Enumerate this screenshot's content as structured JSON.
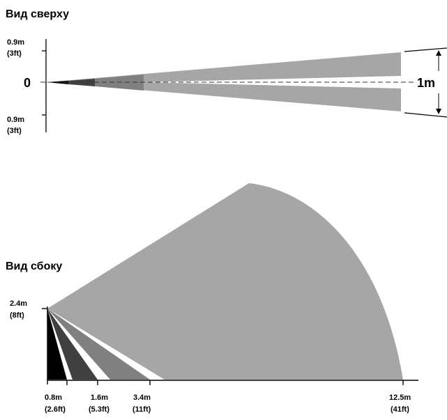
{
  "top_view": {
    "title": "Вид сверху",
    "upper_label": [
      "0.9m",
      "(3ft)"
    ],
    "center_label": "0",
    "lower_label": [
      "0.9m",
      "(3ft)"
    ],
    "width_label": "1m"
  },
  "side_view": {
    "title": "Вид сбоку",
    "height_label": [
      "2.4m",
      "(8ft)"
    ],
    "distance_ticks": [
      {
        "value": "0.8m",
        "sub": "(2.6ft)"
      },
      {
        "value": "1.6m",
        "sub": "(5.3ft)"
      },
      {
        "value": "3.4m",
        "sub": "(11ft)"
      },
      {
        "value": "12.5m",
        "sub": "(41ft)"
      }
    ]
  },
  "colors": {
    "beam_far": "#a6a6a6",
    "beam_mid": "#808080",
    "beam_near": "#404040",
    "beam_closest": "#000000",
    "beam_gray": "#5a5a5a"
  }
}
